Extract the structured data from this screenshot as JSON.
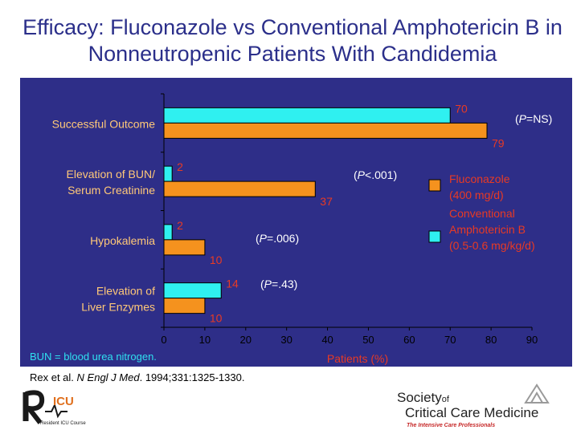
{
  "title": "Efficacy: Fluconazole vs Conventional Amphotericin B in Nonneutropenic Patients With Candidemia",
  "footnote": "BUN = blood urea nitrogen.",
  "citation": {
    "authors": "Rex et al.",
    "journal": "N Engl J Med",
    "details": ". 1994;331:1325-1330."
  },
  "logos": {
    "left_name": "Resident ICU Course",
    "right_line1": "Society",
    "right_of": "of",
    "right_line2": "Critical Care Medicine",
    "right_tagline": "The Intensive Care Professionals"
  },
  "colors": {
    "panel_bg": "#2e2e88",
    "fluconazole": "#f5921e",
    "amphotericin": "#2ff0f0",
    "label_text": "#ffc878",
    "value_text": "#e83a24",
    "axis_text": "#000000",
    "title_text": "#2b2f8a"
  },
  "chart_data": {
    "type": "bar",
    "orientation": "horizontal",
    "categories": [
      [
        "Successful Outcome"
      ],
      [
        "Elevation of BUN/",
        "Serum Creatinine"
      ],
      [
        "Hypokalemia"
      ],
      [
        "Elevation of",
        "Liver Enzymes"
      ]
    ],
    "series": [
      {
        "name": "Conventional Amphotericin B (0.5-0.6 mg/kg/d)",
        "legend_lines": [
          "Conventional",
          "Amphotericin B",
          "(0.5-0.6 mg/kg/d)"
        ],
        "color": "#2ff0f0",
        "values": [
          70,
          2,
          2,
          14
        ]
      },
      {
        "name": "Fluconazole (400 mg/d)",
        "legend_lines": [
          "Fluconazole",
          "(400 mg/d)"
        ],
        "color": "#f5921e",
        "values": [
          79,
          37,
          10,
          10
        ]
      }
    ],
    "pvalues": [
      {
        "pre": "(",
        "p": "P",
        "post": "=NS)"
      },
      {
        "pre": "(",
        "p": "P",
        "post": "<.001)"
      },
      {
        "pre": "(",
        "p": "P",
        "post": "=.006)"
      },
      {
        "pre": "(",
        "p": "P",
        "post": "=.43)"
      }
    ],
    "xlabel": "Patients (%)",
    "xlim": [
      0,
      90
    ],
    "xticks": [
      0,
      10,
      20,
      30,
      40,
      50,
      60,
      70,
      80,
      90
    ],
    "legend_position": "right"
  }
}
